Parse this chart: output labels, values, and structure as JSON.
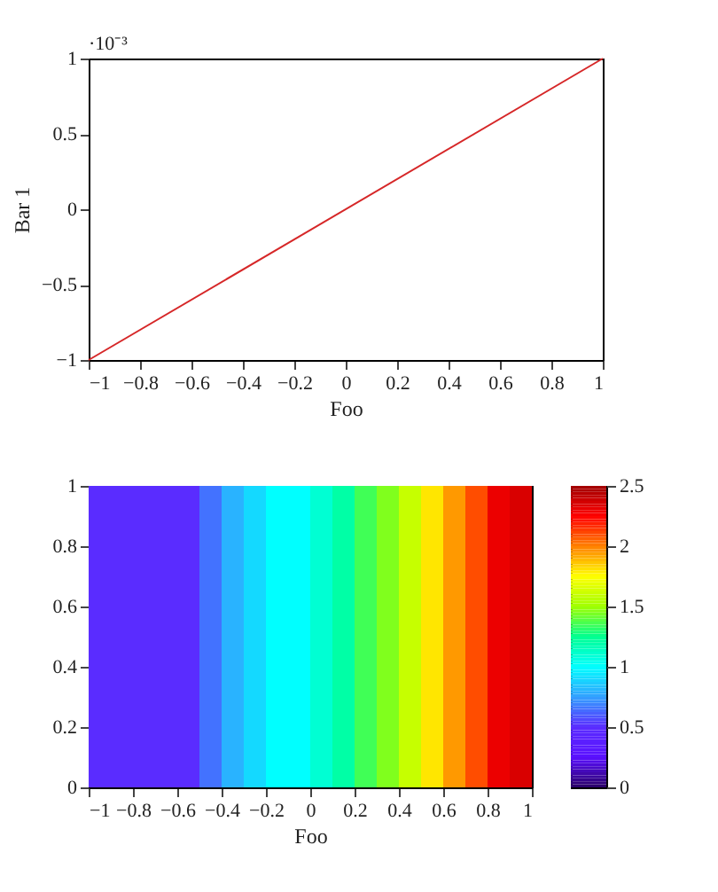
{
  "chart_data": [
    {
      "type": "line",
      "xlabel": "Foo",
      "ylabel": "Bar 1",
      "annotations": [
        "·10⁻³"
      ],
      "x": [
        -1,
        1
      ],
      "series": [
        {
          "color": "#d62728",
          "values": [
            -1,
            1
          ]
        }
      ],
      "xlim": [
        -1,
        1
      ],
      "ylim": [
        -1,
        1
      ],
      "xticks": [
        {
          "value": -1,
          "label": "−1"
        },
        {
          "value": -0.8,
          "label": "−0.8"
        },
        {
          "value": -0.6,
          "label": "−0.6"
        },
        {
          "value": -0.4,
          "label": "−0.4"
        },
        {
          "value": -0.2,
          "label": "−0.2"
        },
        0,
        0.2,
        0.4,
        0.6,
        0.8,
        1
      ],
      "yticks": [
        {
          "value": -1,
          "label": "−1"
        },
        {
          "value": -0.5,
          "label": "−0.5"
        },
        0,
        0.5,
        1
      ],
      "grid": false,
      "marker": "none",
      "line_style": "solid"
    },
    {
      "type": "heatmap",
      "xlabel": "Foo",
      "x": [
        -0.95,
        -0.85,
        -0.75,
        -0.65,
        -0.55,
        -0.45,
        -0.35,
        -0.25,
        -0.15,
        -0.05,
        0.05,
        0.15,
        0.25,
        0.35,
        0.45,
        0.55,
        0.65,
        0.75,
        0.85,
        0.95
      ],
      "cells": [
        [
          0.5,
          0.5,
          0.5,
          0.5,
          0.5,
          0.65,
          0.8,
          0.9,
          1.0,
          1.0,
          1.1,
          1.2,
          1.35,
          1.45,
          1.6,
          1.8,
          1.95,
          2.1,
          2.3,
          2.35
        ]
      ],
      "xlim": [
        -1,
        1
      ],
      "ylim": [
        0,
        1
      ],
      "xticks": [
        {
          "value": -1,
          "label": "−1"
        },
        {
          "value": -0.8,
          "label": "−0.8"
        },
        {
          "value": -0.6,
          "label": "−0.6"
        },
        {
          "value": -0.4,
          "label": "−0.4"
        },
        {
          "value": -0.2,
          "label": "−0.2"
        },
        0,
        0.2,
        0.4,
        0.6,
        0.8,
        1
      ],
      "yticks": [
        0,
        0.2,
        0.4,
        0.6,
        0.8,
        1
      ],
      "clim": [
        0,
        2.5
      ],
      "cticks": [
        0,
        0.5,
        1,
        1.5,
        2,
        2.5
      ]
    }
  ]
}
